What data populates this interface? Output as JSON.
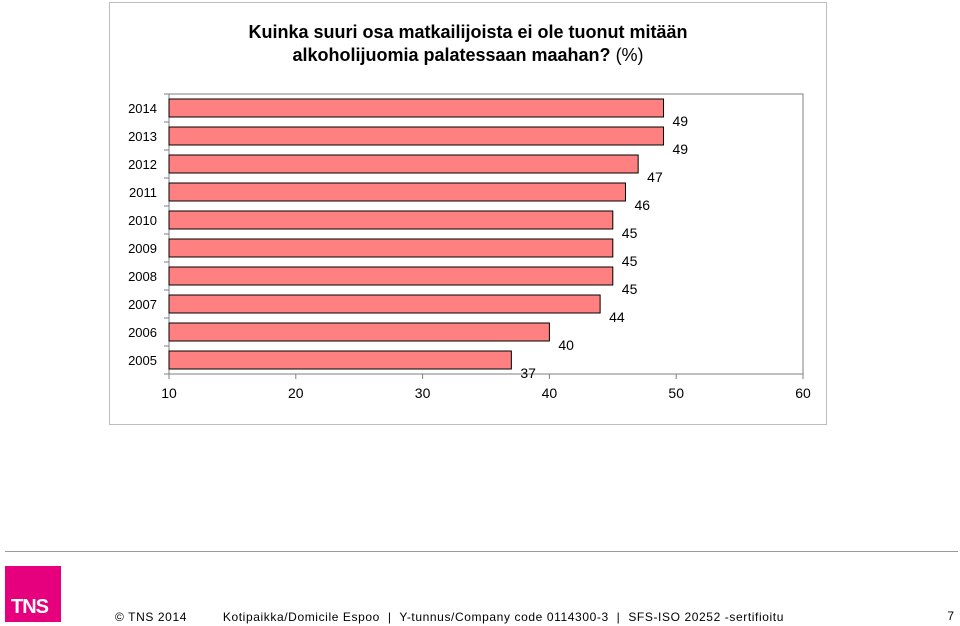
{
  "chart_data": {
    "type": "bar",
    "orientation": "horizontal",
    "title": "Kuinka suuri osa matkailijoista ei ole tuonut mitään alkoholijuomia palatessaan maahan?",
    "title_line1": "Kuinka suuri osa matkailijoista ei ole tuonut mitään",
    "title_line2": "alkoholijuomia palatessaan maahan?",
    "title_unit": "(%)",
    "categories": [
      "2014",
      "2013",
      "2012",
      "2011",
      "2010",
      "2009",
      "2008",
      "2007",
      "2006",
      "2005"
    ],
    "values": [
      49,
      49,
      47,
      46,
      45,
      45,
      45,
      44,
      40,
      37
    ],
    "xlim": [
      10,
      60
    ],
    "xticks": [
      "10",
      "20",
      "30",
      "40",
      "50",
      "60"
    ],
    "grid": false,
    "bar_color": "#ff8080",
    "bar_edge_color": "#000000"
  },
  "footer": {
    "logo_text": "TNS",
    "copyright": "© TNS 2014",
    "address": "Kotipaikka/Domicile Espoo",
    "company_code": "Y-tunnus/Company code 0114300-3",
    "certification": "SFS-ISO 20252 -sertifioitu",
    "separator": "|",
    "page_number": "7"
  }
}
